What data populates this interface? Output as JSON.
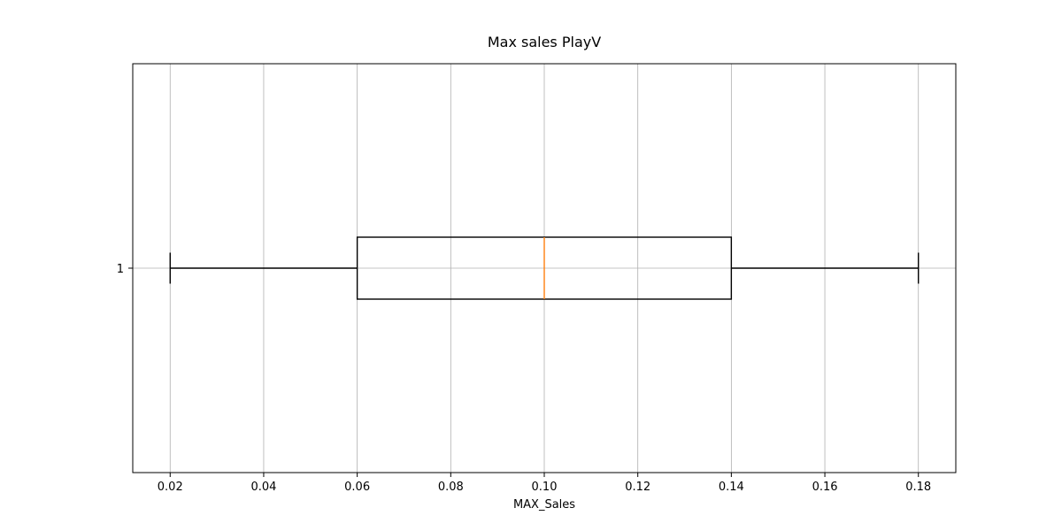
{
  "chart_data": {
    "type": "box",
    "title": "Max sales PlayV",
    "xlabel": "MAX_Sales",
    "ylabel": "",
    "orientation": "horizontal",
    "xlim": [
      0.012,
      0.188
    ],
    "x_ticks": [
      0.02,
      0.04,
      0.06,
      0.08,
      0.1,
      0.12,
      0.14,
      0.16,
      0.18
    ],
    "x_tick_labels": [
      "0.02",
      "0.04",
      "0.06",
      "0.08",
      "0.10",
      "0.12",
      "0.14",
      "0.16",
      "0.18"
    ],
    "y_ticks": [
      1
    ],
    "y_tick_labels": [
      "1"
    ],
    "grid": true,
    "boxes": [
      {
        "position": 1,
        "whisker_low": 0.02,
        "q1": 0.06,
        "median": 0.1,
        "q3": 0.14,
        "whisker_high": 0.18
      }
    ],
    "colors": {
      "box": "#000000",
      "median": "#ff7f0e",
      "grid": "#b0b0b0"
    }
  }
}
